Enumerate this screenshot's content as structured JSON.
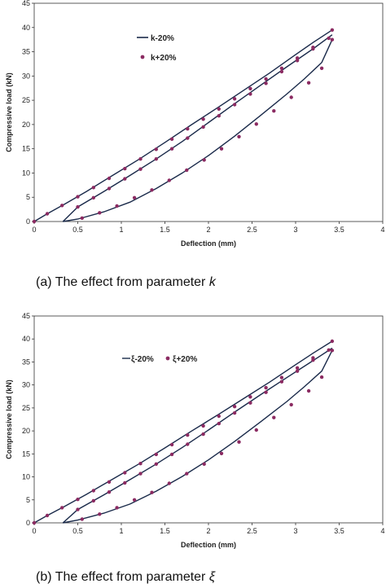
{
  "captions": {
    "a": {
      "prefix": "(a) The effect from parameter ",
      "symbol": "k"
    },
    "b": {
      "prefix": "(b) The effect from parameter ",
      "symbol": "ξ"
    }
  },
  "chart_data": [
    {
      "type": "line",
      "title": "",
      "xlabel": "Deflection (mm)",
      "ylabel": "Compressive load (kN)",
      "xlim": [
        0,
        4
      ],
      "ylim": [
        0,
        45
      ],
      "xticks": [
        "0",
        "0.5",
        "1",
        "1.5",
        "2",
        "2.5",
        "3",
        "3.5",
        "4"
      ],
      "yticks": [
        "0",
        "5",
        "10",
        "15",
        "20",
        "25",
        "30",
        "35",
        "40",
        "45"
      ],
      "grid": false,
      "legend_position": "upper-center",
      "series": [
        {
          "name": "k-20%",
          "style": "line",
          "color": "#1a2a4a",
          "x": [
            0,
            0.15,
            0.35,
            0.6,
            0.9,
            1.2,
            1.5,
            1.8,
            2.1,
            2.4,
            2.7,
            3.0,
            3.2,
            3.42
          ],
          "y": [
            0,
            1.6,
            3.6,
            6.2,
            9.5,
            12.8,
            16.3,
            19.9,
            23.4,
            27.0,
            30.6,
            34.4,
            36.9,
            39.5
          ]
        },
        {
          "name": "k-20% (unloading-upper)",
          "style": "line",
          "color": "#1a2a4a",
          "x": [
            3.42,
            3.2,
            2.9,
            2.6,
            2.3,
            2.0,
            1.7,
            1.4,
            1.1,
            0.8,
            0.5,
            0.33
          ],
          "y": [
            38.5,
            35.6,
            31.9,
            28.1,
            24.3,
            20.4,
            16.5,
            12.9,
            9.5,
            6.2,
            3.0,
            0
          ]
        },
        {
          "name": "k-20% (lower)",
          "style": "line",
          "color": "#1a2a4a",
          "x": [
            0.33,
            0.5,
            0.8,
            1.1,
            1.4,
            1.7,
            2.0,
            2.3,
            2.6,
            2.9,
            3.1,
            3.3,
            3.42
          ],
          "y": [
            0,
            0.5,
            2.0,
            4.0,
            6.8,
            10.0,
            13.6,
            17.6,
            21.9,
            26.3,
            29.4,
            32.8,
            37.5
          ]
        },
        {
          "name": "k+20%",
          "style": "markers",
          "color": "#8b2b62",
          "x": [
            0,
            0.15,
            0.32,
            0.5,
            0.68,
            0.86,
            1.04,
            1.22,
            1.4,
            1.58,
            1.76,
            1.94,
            2.12,
            2.3,
            2.48,
            2.66,
            2.84,
            3.02,
            3.2,
            3.42,
            3.38,
            3.2,
            3.02,
            2.84,
            2.66,
            2.48,
            2.3,
            2.12,
            1.94,
            1.76,
            1.58,
            1.4,
            1.22,
            1.04,
            0.86,
            0.68,
            0.5,
            0.55,
            0.75,
            0.95,
            1.15,
            1.35,
            1.55,
            1.75,
            1.95,
            2.15,
            2.35,
            2.55,
            2.75,
            2.95,
            3.15,
            3.3,
            3.42
          ],
          "y": [
            0,
            1.6,
            3.3,
            5.1,
            7.0,
            8.9,
            10.9,
            12.9,
            14.9,
            17.0,
            19.1,
            21.1,
            23.2,
            25.3,
            27.4,
            29.4,
            31.6,
            33.7,
            35.9,
            39.5,
            37.8,
            35.6,
            33.2,
            30.9,
            28.5,
            26.3,
            24.1,
            21.8,
            19.5,
            17.2,
            15.0,
            12.9,
            10.8,
            8.8,
            6.8,
            4.9,
            3.0,
            0.7,
            1.8,
            3.2,
            4.9,
            6.5,
            8.5,
            10.6,
            12.7,
            15.0,
            17.5,
            20.1,
            22.8,
            25.6,
            28.6,
            31.6,
            37.5
          ]
        }
      ],
      "legend": [
        "k-20%",
        "k+20%"
      ]
    },
    {
      "type": "line",
      "title": "",
      "xlabel": "Deflection (mm)",
      "ylabel": "Compressive load (kN)",
      "xlim": [
        0,
        4
      ],
      "ylim": [
        0,
        45
      ],
      "xticks": [
        "0",
        "0.5",
        "1",
        "1.5",
        "2",
        "2.5",
        "3",
        "3.5",
        "4"
      ],
      "yticks": [
        "0",
        "5",
        "10",
        "15",
        "20",
        "25",
        "30",
        "35",
        "40",
        "45"
      ],
      "grid": false,
      "legend_position": "upper-center",
      "series": [
        {
          "name": "ξ-20%",
          "style": "line",
          "color": "#1a2a4a",
          "x": [
            0,
            0.15,
            0.35,
            0.6,
            0.9,
            1.2,
            1.5,
            1.8,
            2.1,
            2.4,
            2.7,
            3.0,
            3.2,
            3.42
          ],
          "y": [
            0,
            1.6,
            3.6,
            6.2,
            9.5,
            12.8,
            16.3,
            19.9,
            23.4,
            27.0,
            30.6,
            34.4,
            36.9,
            39.5
          ]
        },
        {
          "name": "ξ-20% (unloading-upper)",
          "style": "line",
          "color": "#1a2a4a",
          "x": [
            3.42,
            3.2,
            2.9,
            2.6,
            2.3,
            2.0,
            1.7,
            1.4,
            1.1,
            0.8,
            0.5,
            0.33
          ],
          "y": [
            38.0,
            35.3,
            31.6,
            27.9,
            24.1,
            20.2,
            16.4,
            12.8,
            9.4,
            6.1,
            2.9,
            0
          ]
        },
        {
          "name": "ξ-20% (lower)",
          "style": "line",
          "color": "#1a2a4a",
          "x": [
            0.33,
            0.5,
            0.8,
            1.1,
            1.4,
            1.7,
            2.0,
            2.3,
            2.6,
            2.9,
            3.1,
            3.3,
            3.42
          ],
          "y": [
            0,
            0.6,
            2.1,
            4.1,
            6.9,
            10.1,
            13.7,
            17.7,
            22.0,
            26.4,
            29.6,
            33.0,
            37.5
          ]
        },
        {
          "name": "ξ+20%",
          "style": "markers",
          "color": "#8b2b62",
          "x": [
            0,
            0.15,
            0.32,
            0.5,
            0.68,
            0.86,
            1.04,
            1.22,
            1.4,
            1.58,
            1.76,
            1.94,
            2.12,
            2.3,
            2.48,
            2.66,
            2.84,
            3.02,
            3.2,
            3.42,
            3.38,
            3.2,
            3.02,
            2.84,
            2.66,
            2.48,
            2.3,
            2.12,
            1.94,
            1.76,
            1.58,
            1.4,
            1.22,
            1.04,
            0.86,
            0.68,
            0.5,
            0.55,
            0.75,
            0.95,
            1.15,
            1.35,
            1.55,
            1.75,
            1.95,
            2.15,
            2.35,
            2.55,
            2.75,
            2.95,
            3.15,
            3.3,
            3.42
          ],
          "y": [
            0,
            1.6,
            3.3,
            5.1,
            7.0,
            8.9,
            10.9,
            12.9,
            14.9,
            17.0,
            19.1,
            21.1,
            23.2,
            25.3,
            27.4,
            29.4,
            31.6,
            33.7,
            35.9,
            39.5,
            37.6,
            35.4,
            33.0,
            30.7,
            28.4,
            26.1,
            23.9,
            21.6,
            19.3,
            17.1,
            14.9,
            12.8,
            10.7,
            8.7,
            6.7,
            4.8,
            2.9,
            0.8,
            1.9,
            3.3,
            5.0,
            6.6,
            8.6,
            10.7,
            12.8,
            15.1,
            17.6,
            20.2,
            22.9,
            25.7,
            28.7,
            31.7,
            37.5
          ]
        }
      ],
      "legend": [
        "ξ-20%",
        "ξ+20%"
      ]
    }
  ]
}
